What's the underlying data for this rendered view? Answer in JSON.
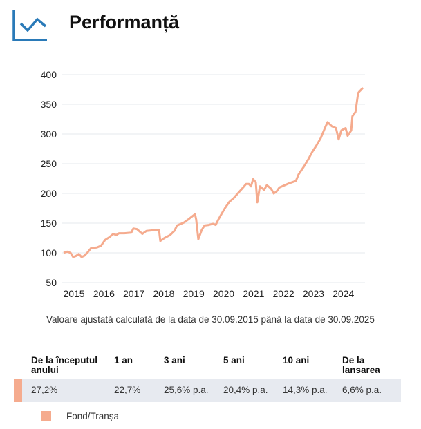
{
  "header": {
    "title": "Performanță",
    "icon": "line-chart-icon",
    "icon_color": "#2a7ab8"
  },
  "chart_data": {
    "type": "line",
    "title": "",
    "xlabel": "",
    "ylabel": "",
    "ylim": [
      50,
      400
    ],
    "yticks": [
      50,
      100,
      150,
      200,
      250,
      300,
      350,
      400
    ],
    "xtick_labels": [
      "2015",
      "2016",
      "2017",
      "2018",
      "2019",
      "2020",
      "2021",
      "2022",
      "2023",
      "2024"
    ],
    "grid": "horizontal",
    "color": "#f5ab8e",
    "series": [
      {
        "x": [
          2015.75,
          2015.87,
          2015.98,
          2016.07,
          2016.17,
          2016.26,
          2016.35,
          2016.44,
          2016.54,
          2016.67,
          2016.86,
          2017.0,
          2017.14,
          2017.27,
          2017.41,
          2017.51,
          2017.6,
          2017.78,
          2018.01,
          2018.08,
          2018.2,
          2018.38,
          2018.52,
          2018.75,
          2018.94,
          2018.98,
          2019.12,
          2019.31,
          2019.45,
          2019.54,
          2019.77,
          2019.91,
          2020.14,
          2020.18,
          2020.25,
          2020.37,
          2020.46,
          2020.6,
          2020.74,
          2020.83,
          2020.92,
          2021.02,
          2021.15,
          2021.29,
          2021.43,
          2021.57,
          2021.71,
          2021.85,
          2021.94,
          2022.01,
          2022.08,
          2022.17,
          2022.22,
          2022.31,
          2022.45,
          2022.54,
          2022.68,
          2022.77,
          2022.86,
          2022.96,
          2023.14,
          2023.28,
          2023.51,
          2023.6,
          2023.79,
          2023.93,
          2024.06,
          2024.2,
          2024.34,
          2024.48,
          2024.57,
          2024.71,
          2024.85,
          2024.94,
          2025.03,
          2025.17,
          2025.24,
          2025.36,
          2025.4,
          2025.5,
          2025.59,
          2025.64,
          2025.68,
          2025.75
        ],
        "values": [
          100,
          102,
          100,
          93,
          95,
          98,
          93,
          95,
          100,
          108,
          109,
          112,
          122,
          126,
          132,
          130,
          133,
          133,
          134,
          141,
          140,
          132,
          137,
          138,
          138,
          120,
          125,
          130,
          137,
          146,
          151,
          156,
          165,
          156,
          123,
          139,
          146,
          147,
          149,
          147,
          156,
          165,
          176,
          186,
          192,
          200,
          208,
          216,
          216,
          212,
          224,
          219,
          185,
          212,
          206,
          214,
          208,
          200,
          203,
          210,
          214,
          217,
          221,
          232,
          246,
          258,
          270,
          281,
          293,
          310,
          320,
          313,
          310,
          291,
          306,
          310,
          297,
          306,
          330,
          337,
          369,
          372,
          374,
          378
        ]
      }
    ]
  },
  "caption": "Valoare ajustată calculată de la data de 30.09.2015 până la data de 30.09.2025",
  "table": {
    "headers": [
      "De la începutul anului",
      "1 an",
      "3 ani",
      "5 ani",
      "10 ani",
      "De la lansarea"
    ],
    "row": [
      "27,2%",
      "22,7%",
      "25,6% p.a.",
      "20,4% p.a.",
      "14,3% p.a.",
      "6,6% p.a."
    ],
    "row_color": "#f5ab8e"
  },
  "legend": {
    "label": "Fond/Tranșa",
    "color": "#f5ab8e"
  }
}
